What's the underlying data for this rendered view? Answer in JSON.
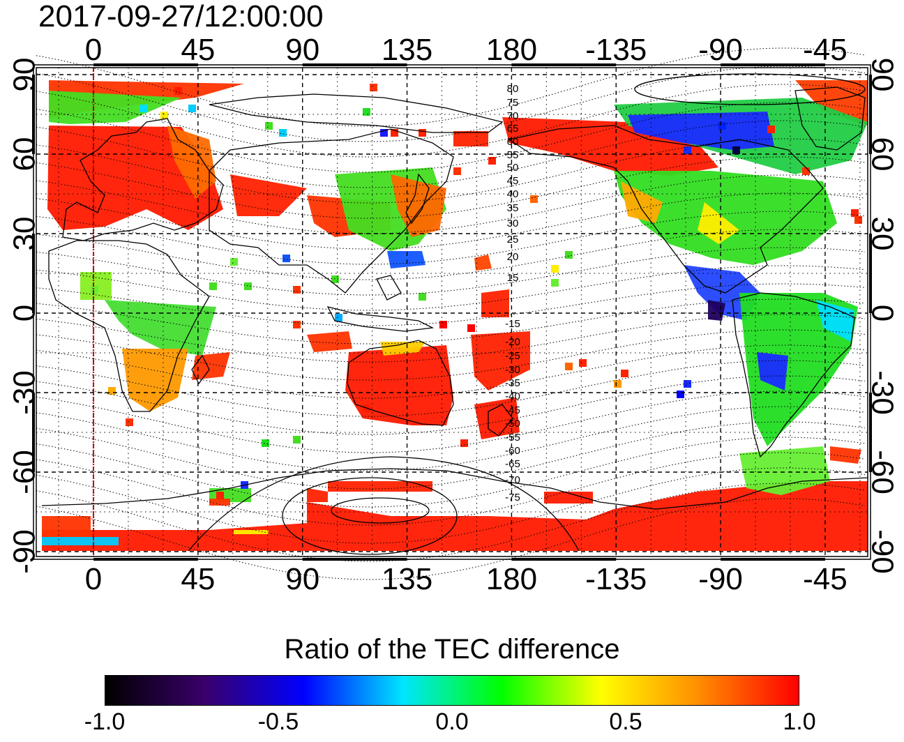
{
  "timestamp": "2017-09-27/12:00:00",
  "map": {
    "lon_ticks": [
      "0",
      "45",
      "90",
      "135",
      "180",
      "-135",
      "-90",
      "-45"
    ],
    "lat_ticks": [
      "90",
      "60",
      "30",
      "0",
      "-30",
      "-60",
      "-90"
    ],
    "lat_ticks_right": [
      "90",
      "60",
      "30",
      "0",
      "-30",
      "-60",
      "-90"
    ],
    "magnetic_latitude_labels_north": [
      "80",
      "75",
      "70",
      "65",
      "60",
      "55",
      "50",
      "45",
      "40",
      "35",
      "30",
      "25",
      "20",
      "15"
    ],
    "magnetic_latitude_labels_south": [
      "-15",
      "-20",
      "-25",
      "-30",
      "-35",
      "-40",
      "-45",
      "-50",
      "-55",
      "-60",
      "-65",
      "-70",
      "-75"
    ],
    "reference_meridian_color": "#cc0000"
  },
  "colorbar": {
    "title": "Ratio of the TEC difference",
    "tick_labels": [
      "-1.0",
      "-0.5",
      "0.0",
      "0.5",
      "1.0"
    ],
    "colors": [
      "#000000",
      "#3a006a",
      "#0000ff",
      "#00e5ff",
      "#00ff00",
      "#ffff00",
      "#ff8c00",
      "#ff0000"
    ]
  }
}
